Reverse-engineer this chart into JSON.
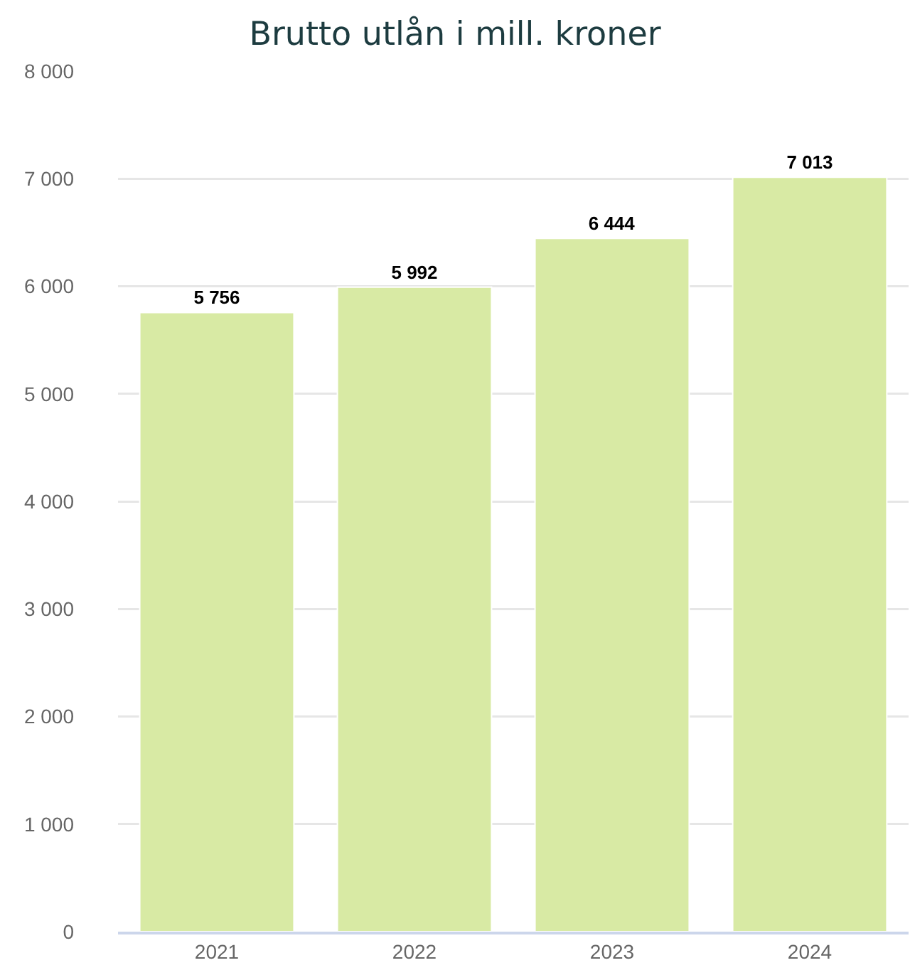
{
  "chart_data": {
    "type": "bar",
    "title": "Brutto utlån i mill. kroner",
    "categories": [
      "2021",
      "2022",
      "2023",
      "2024"
    ],
    "values": [
      5756,
      5992,
      6444,
      7013
    ],
    "color": "#d8eaa4",
    "value_labels": [
      "5 756",
      "5 992",
      "6 444",
      "7 013"
    ],
    "ylim": [
      0,
      8000
    ],
    "yticks": [
      0,
      {
        "value": 1000,
        "label": "1 000"
      },
      {
        "value": 2000,
        "label": "2 000"
      },
      {
        "value": 3000,
        "label": "3 000"
      },
      {
        "value": 4000,
        "label": "4 000"
      },
      {
        "value": 5000,
        "label": "5 000"
      },
      {
        "value": 6000,
        "label": "6 000"
      },
      {
        "value": 7000,
        "label": "7 000"
      },
      {
        "value": 8000,
        "label": "8 000"
      }
    ],
    "grid": "y",
    "legend": false
  }
}
